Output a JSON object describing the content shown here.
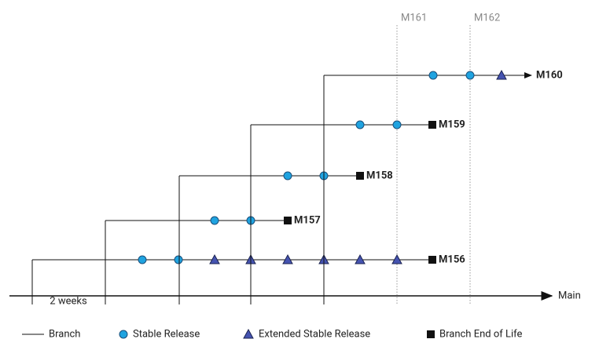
{
  "milestones": [
    "M161",
    "M162"
  ],
  "branches": [
    "M156",
    "M157",
    "M158",
    "M159",
    "M160"
  ],
  "main_label": "Main",
  "interval_label": "2 weeks",
  "legend": [
    "Branch",
    "Stable Release",
    "Extended Stable Release",
    "Branch End of Life"
  ]
}
